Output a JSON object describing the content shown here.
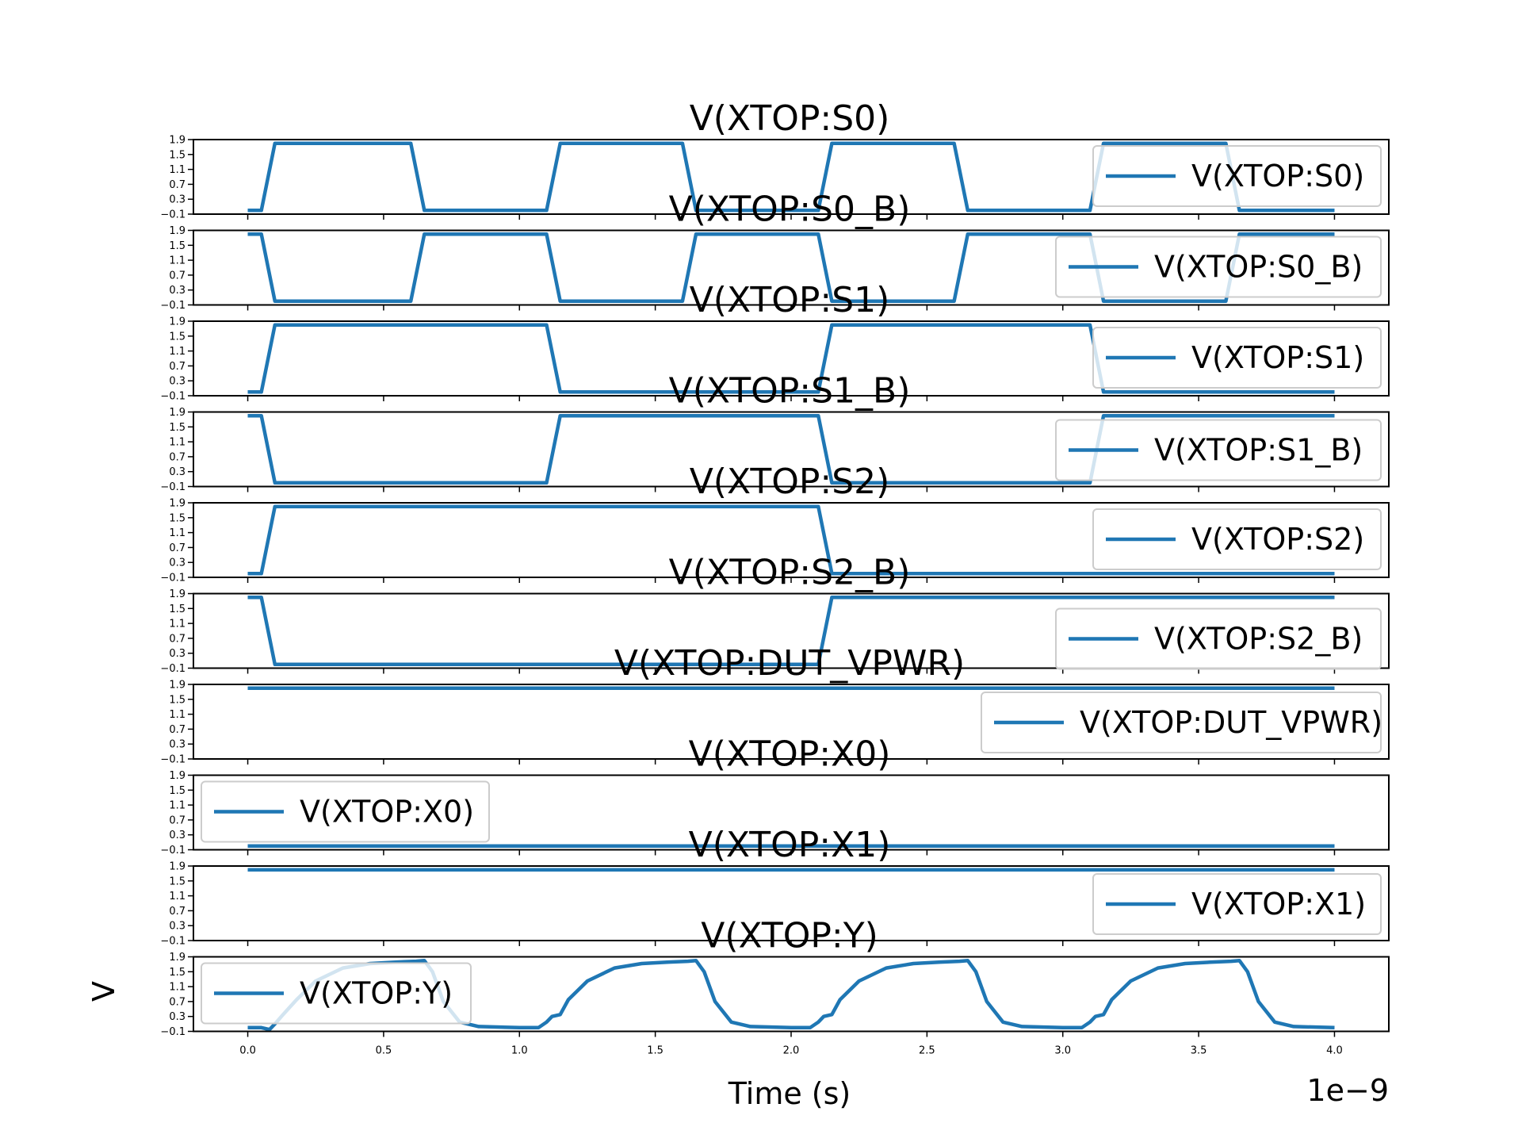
{
  "chart_data": {
    "type": "line",
    "xlabel": "Time (s)",
    "ylabel": "V",
    "x_offset_label": "1e−9",
    "xlim": [
      -0.2,
      4.2
    ],
    "xticks": [
      "0.0",
      "0.5",
      "1.0",
      "1.5",
      "2.0",
      "2.5",
      "3.0",
      "3.5",
      "4.0"
    ],
    "ylim": [
      -0.1,
      1.9
    ],
    "yticks": [
      "−0.1",
      "0.3",
      "0.7",
      "1.1",
      "1.5",
      "1.9"
    ],
    "line_color": "#1f77b4",
    "grid": false,
    "subplots": [
      {
        "title": "V(XTOP:S0)",
        "legend": "V(XTOP:S0)",
        "legend_loc": "upper-right",
        "x": [
          0,
          0.05,
          0.1,
          0.6,
          0.65,
          1.1,
          1.15,
          1.6,
          1.65,
          2.1,
          2.15,
          2.6,
          2.65,
          3.1,
          3.15,
          3.6,
          3.65,
          4.0
        ],
        "y": [
          0,
          0,
          1.8,
          1.8,
          0,
          0,
          1.8,
          1.8,
          0,
          0,
          1.8,
          1.8,
          0,
          0,
          1.8,
          1.8,
          0,
          0
        ]
      },
      {
        "title": "V(XTOP:S0_B)",
        "legend": "V(XTOP:S0_B)",
        "legend_loc": "upper-right",
        "x": [
          0,
          0.05,
          0.1,
          0.6,
          0.65,
          1.1,
          1.15,
          1.6,
          1.65,
          2.1,
          2.15,
          2.6,
          2.65,
          3.1,
          3.15,
          3.6,
          3.65,
          4.0
        ],
        "y": [
          1.8,
          1.8,
          0,
          0,
          1.8,
          1.8,
          0,
          0,
          1.8,
          1.8,
          0,
          0,
          1.8,
          1.8,
          0,
          0,
          1.8,
          1.8
        ]
      },
      {
        "title": "V(XTOP:S1)",
        "legend": "V(XTOP:S1)",
        "legend_loc": "upper-right",
        "x": [
          0,
          0.05,
          0.1,
          1.1,
          1.15,
          2.1,
          2.15,
          3.1,
          3.15,
          4.0
        ],
        "y": [
          0,
          0,
          1.8,
          1.8,
          0,
          0,
          1.8,
          1.8,
          0,
          0
        ]
      },
      {
        "title": "V(XTOP:S1_B)",
        "legend": "V(XTOP:S1_B)",
        "legend_loc": "lower-right",
        "x": [
          0,
          0.05,
          0.1,
          1.1,
          1.15,
          2.1,
          2.15,
          3.1,
          3.15,
          4.0
        ],
        "y": [
          1.8,
          1.8,
          0,
          0,
          1.8,
          1.8,
          0,
          0,
          1.8,
          1.8
        ]
      },
      {
        "title": "V(XTOP:S2)",
        "legend": "V(XTOP:S2)",
        "legend_loc": "upper-right",
        "x": [
          0,
          0.05,
          0.1,
          2.1,
          2.15,
          4.0
        ],
        "y": [
          0,
          0,
          1.8,
          1.8,
          0,
          0
        ]
      },
      {
        "title": "V(XTOP:S2_B)",
        "legend": "V(XTOP:S2_B)",
        "legend_loc": "center-right",
        "x": [
          0,
          0.05,
          0.1,
          2.1,
          2.15,
          4.0
        ],
        "y": [
          1.8,
          1.8,
          0,
          0,
          1.8,
          1.8
        ]
      },
      {
        "title": "V(XTOP:DUT_VPWR)",
        "legend": "V(XTOP:DUT_VPWR)",
        "legend_loc": "lower-right",
        "x": [
          0,
          4.0
        ],
        "y": [
          1.8,
          1.8
        ]
      },
      {
        "title": "V(XTOP:X0)",
        "legend": "V(XTOP:X0)",
        "legend_loc": "upper-left",
        "x": [
          0,
          4.0
        ],
        "y": [
          0,
          0
        ]
      },
      {
        "title": "V(XTOP:X1)",
        "legend": "V(XTOP:X1)",
        "legend_loc": "lower-right",
        "x": [
          0,
          4.0
        ],
        "y": [
          1.8,
          1.8
        ]
      },
      {
        "title": "V(XTOP:Y)",
        "legend": "V(XTOP:Y)",
        "legend_loc": "upper-left",
        "x": [
          0,
          0.05,
          0.08,
          0.1,
          0.13,
          0.18,
          0.25,
          0.35,
          0.45,
          0.55,
          0.62,
          0.65,
          0.68,
          0.72,
          0.78,
          0.85,
          1.0,
          1.07,
          1.1,
          1.12,
          1.15,
          1.18,
          1.25,
          1.35,
          1.45,
          1.55,
          1.62,
          1.65,
          1.68,
          1.72,
          1.78,
          1.85,
          2.0,
          2.07,
          2.1,
          2.12,
          2.15,
          2.18,
          2.25,
          2.35,
          2.45,
          2.55,
          2.62,
          2.65,
          2.68,
          2.72,
          2.78,
          2.85,
          3.0,
          3.07,
          3.1,
          3.12,
          3.15,
          3.18,
          3.25,
          3.35,
          3.45,
          3.55,
          3.62,
          3.65,
          3.68,
          3.72,
          3.78,
          3.85,
          4.0
        ],
        "y": [
          0,
          0,
          -0.05,
          0.1,
          0.35,
          0.75,
          1.25,
          1.6,
          1.72,
          1.76,
          1.78,
          1.8,
          1.5,
          0.7,
          0.15,
          0.03,
          0,
          0,
          0.15,
          0.3,
          0.35,
          0.75,
          1.25,
          1.6,
          1.72,
          1.76,
          1.78,
          1.8,
          1.5,
          0.7,
          0.15,
          0.03,
          0,
          0,
          0.15,
          0.3,
          0.35,
          0.75,
          1.25,
          1.6,
          1.72,
          1.76,
          1.78,
          1.8,
          1.5,
          0.7,
          0.15,
          0.03,
          0,
          0,
          0.15,
          0.3,
          0.35,
          0.75,
          1.25,
          1.6,
          1.72,
          1.76,
          1.78,
          1.8,
          1.5,
          0.7,
          0.15,
          0.03,
          0
        ]
      }
    ]
  }
}
